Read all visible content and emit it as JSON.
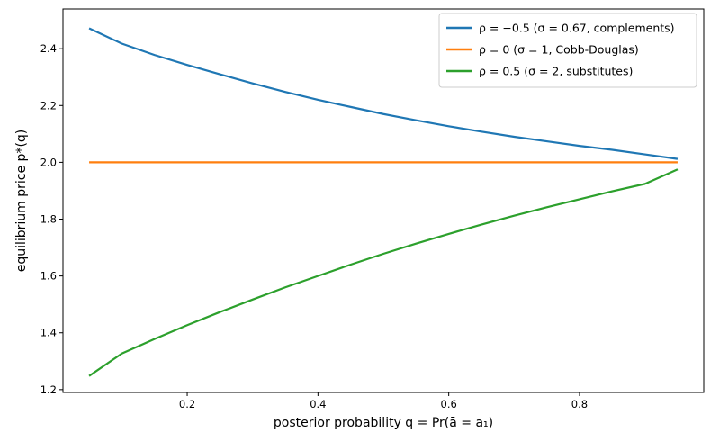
{
  "chart_data": {
    "type": "line",
    "xlabel": "posterior probability q = Pr(ā = a₁)",
    "ylabel": "equilibrium price p*(q)",
    "xlim": [
      0.01,
      0.99
    ],
    "ylim": [
      1.19,
      2.54
    ],
    "xticks": [
      "0.2",
      "0.4",
      "0.6",
      "0.8"
    ],
    "xtick_values": [
      0.2,
      0.4,
      0.6,
      0.8
    ],
    "yticks": [
      "1.2",
      "1.4",
      "1.6",
      "1.8",
      "2.0",
      "2.2",
      "2.4"
    ],
    "ytick_values": [
      1.2,
      1.4,
      1.6,
      1.8,
      2.0,
      2.2,
      2.4
    ],
    "grid": false,
    "legend_position": "top-right",
    "x": [
      0.05,
      0.1,
      0.15,
      0.2,
      0.25,
      0.3,
      0.35,
      0.4,
      0.45,
      0.5,
      0.55,
      0.6,
      0.65,
      0.7,
      0.75,
      0.8,
      0.85,
      0.9,
      0.95
    ],
    "series": [
      {
        "name": "ρ = −0.5 (σ = 0.67, complements)",
        "color": "#1f77b4",
        "values": [
          2.472,
          2.418,
          2.378,
          2.343,
          2.31,
          2.278,
          2.248,
          2.22,
          2.195,
          2.17,
          2.148,
          2.127,
          2.108,
          2.09,
          2.074,
          2.058,
          2.044,
          2.028,
          2.012
        ]
      },
      {
        "name": "ρ = 0 (σ = 1, Cobb-Douglas)",
        "color": "#ff7f0e",
        "values": [
          2.0,
          2.0,
          2.0,
          2.0,
          2.0,
          2.0,
          2.0,
          2.0,
          2.0,
          2.0,
          2.0,
          2.0,
          2.0,
          2.0,
          2.0,
          2.0,
          2.0,
          2.0,
          2.0
        ]
      },
      {
        "name": "ρ = 0.5 (σ = 2, substitutes)",
        "color": "#2ca02c",
        "values": [
          1.248,
          1.327,
          1.378,
          1.427,
          1.473,
          1.517,
          1.56,
          1.6,
          1.64,
          1.678,
          1.714,
          1.748,
          1.781,
          1.812,
          1.842,
          1.87,
          1.898,
          1.924,
          1.975
        ]
      }
    ]
  }
}
